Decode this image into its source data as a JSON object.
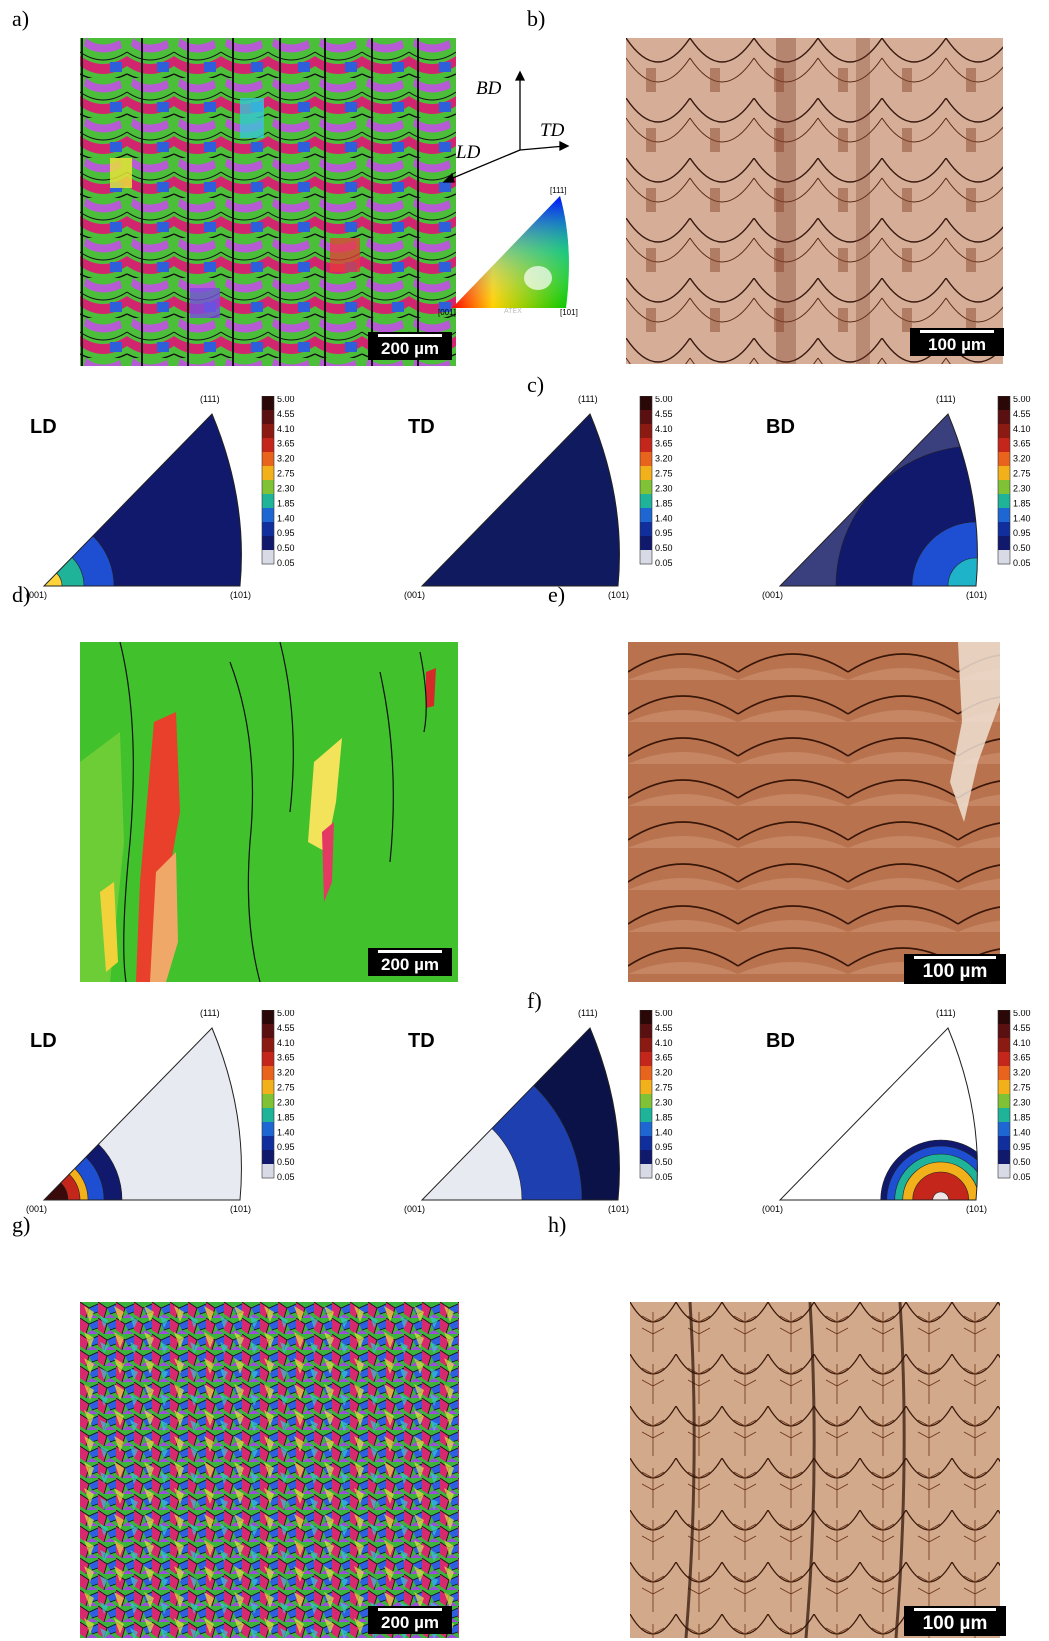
{
  "panels": {
    "a": "a)",
    "b": "b)",
    "c": "c)",
    "d": "d)",
    "e": "e)",
    "f": "f)",
    "g": "g)",
    "h": "h)"
  },
  "scalebars": {
    "a": "200 µm",
    "b": "100 µm",
    "d": "200 µm",
    "e": "100 µm",
    "g": "200 µm",
    "h": "100 µm"
  },
  "axes": {
    "bd": "BD",
    "td": "TD",
    "ld": "LD"
  },
  "ipf_key": {
    "top": "[111]",
    "left": "[001]",
    "right": "[101]",
    "watermark": "ATEX"
  },
  "pole_figure": {
    "hkl_top": "(111)",
    "hkl_left": "(001)",
    "hkl_right": "(101)",
    "colorbar": [
      "5.00",
      "4.55",
      "4.10",
      "3.65",
      "3.20",
      "2.75",
      "2.30",
      "1.85",
      "1.40",
      "0.95",
      "0.50",
      "0.05"
    ],
    "colorbar_colors": [
      "#2a0808",
      "#5a1010",
      "#8b1a12",
      "#c4261b",
      "#e8641c",
      "#f2b01a",
      "#7fc235",
      "#1fb39a",
      "#1e66d1",
      "#102f9c",
      "#10196b",
      "#d8dbe6"
    ]
  },
  "row_c": [
    {
      "dir": "LD"
    },
    {
      "dir": "TD"
    },
    {
      "dir": "BD"
    }
  ],
  "row_f": [
    {
      "dir": "LD"
    },
    {
      "dir": "TD"
    },
    {
      "dir": "BD"
    }
  ]
}
